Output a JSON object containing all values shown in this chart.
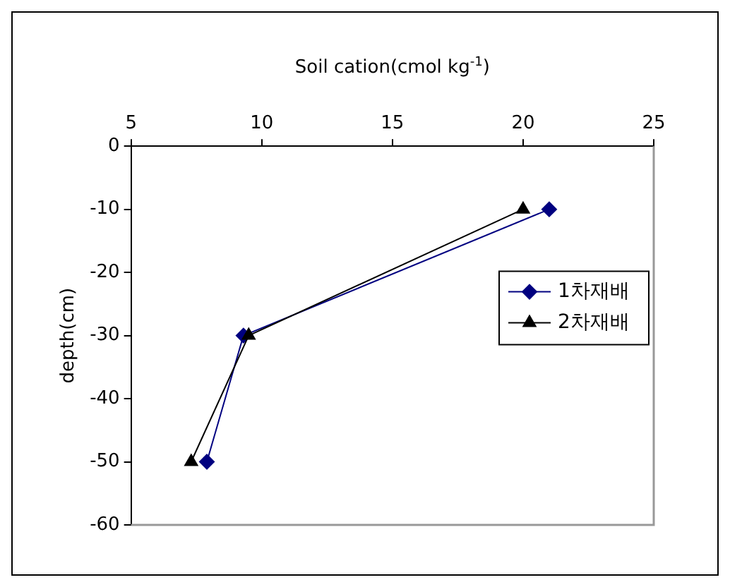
{
  "chart_data": {
    "type": "line",
    "xlabel": "Soil cation(cmol kg$^{-1}$)",
    "ylabel": "depth(cm)",
    "xlim": [
      5,
      25
    ],
    "xticks": [
      5,
      10,
      15,
      20,
      25
    ],
    "ylim": [
      -60,
      0
    ],
    "yticks": [
      -60,
      -50,
      -40,
      -30,
      -20,
      -10,
      0
    ],
    "grid": false,
    "legend": "right",
    "series": [
      {
        "name": "1차재배",
        "color": "#000080",
        "marker": "diamond",
        "x": [
          21.0,
          9.3,
          7.9
        ],
        "values": [
          -10,
          -30,
          -50
        ]
      },
      {
        "name": "2차재배",
        "color": "#000000",
        "marker": "triangle",
        "x": [
          20.0,
          9.5,
          7.3
        ],
        "values": [
          -10,
          -30,
          -50
        ]
      }
    ]
  }
}
